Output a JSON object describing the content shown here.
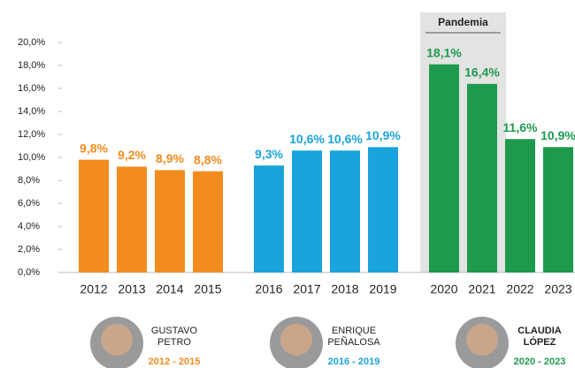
{
  "chart_data": {
    "type": "bar",
    "categories": [
      "2012",
      "2013",
      "2014",
      "2015",
      "2016",
      "2017",
      "2018",
      "2019",
      "2020",
      "2021",
      "2022",
      "2023"
    ],
    "values": [
      9.8,
      9.2,
      8.9,
      8.8,
      9.3,
      10.6,
      10.6,
      10.9,
      18.1,
      16.4,
      11.6,
      10.9
    ],
    "value_labels": [
      "9,8%",
      "9,2%",
      "8,9%",
      "8,8%",
      "9,3%",
      "10,6%",
      "10,6%",
      "10,9%",
      "18,1%",
      "16,4%",
      "11,6%",
      "10,9%"
    ],
    "colors": [
      "#f28c1e",
      "#f28c1e",
      "#f28c1e",
      "#f28c1e",
      "#1aa3dd",
      "#1aa3dd",
      "#1aa3dd",
      "#1aa3dd",
      "#1e9a4f",
      "#1e9a4f",
      "#1e9a4f",
      "#1e9a4f"
    ],
    "ylim": [
      0,
      20
    ],
    "yticks": [
      {
        "value": 0,
        "label": "0,0%"
      },
      {
        "value": 2,
        "label": "2,0%"
      },
      {
        "value": 4,
        "label": "4,0%"
      },
      {
        "value": 6,
        "label": "6,0%"
      },
      {
        "value": 8,
        "label": "8,0%"
      },
      {
        "value": 10,
        "label": "10,0%"
      },
      {
        "value": 12,
        "label": "12,0%"
      },
      {
        "value": 14,
        "label": "14,0%"
      },
      {
        "value": 16,
        "label": "16,0%"
      },
      {
        "value": 18,
        "label": "18,0%"
      },
      {
        "value": 20,
        "label": "20,0%"
      }
    ],
    "highlight": {
      "label": "Pandemia",
      "from": "2020",
      "to": "2021"
    },
    "mayors": [
      {
        "name": [
          "GUSTAVO",
          "PETRO"
        ],
        "term": "2012 - 2015",
        "color": "#f28c1e"
      },
      {
        "name": [
          "ENRIQUE",
          "PEÑALOSA"
        ],
        "term": "2016 - 2019",
        "color": "#1aa3dd"
      },
      {
        "name": [
          "CLAUDIA",
          "LÓPEZ"
        ],
        "term": "2020 - 2023",
        "color": "#1e9a4f"
      }
    ]
  }
}
